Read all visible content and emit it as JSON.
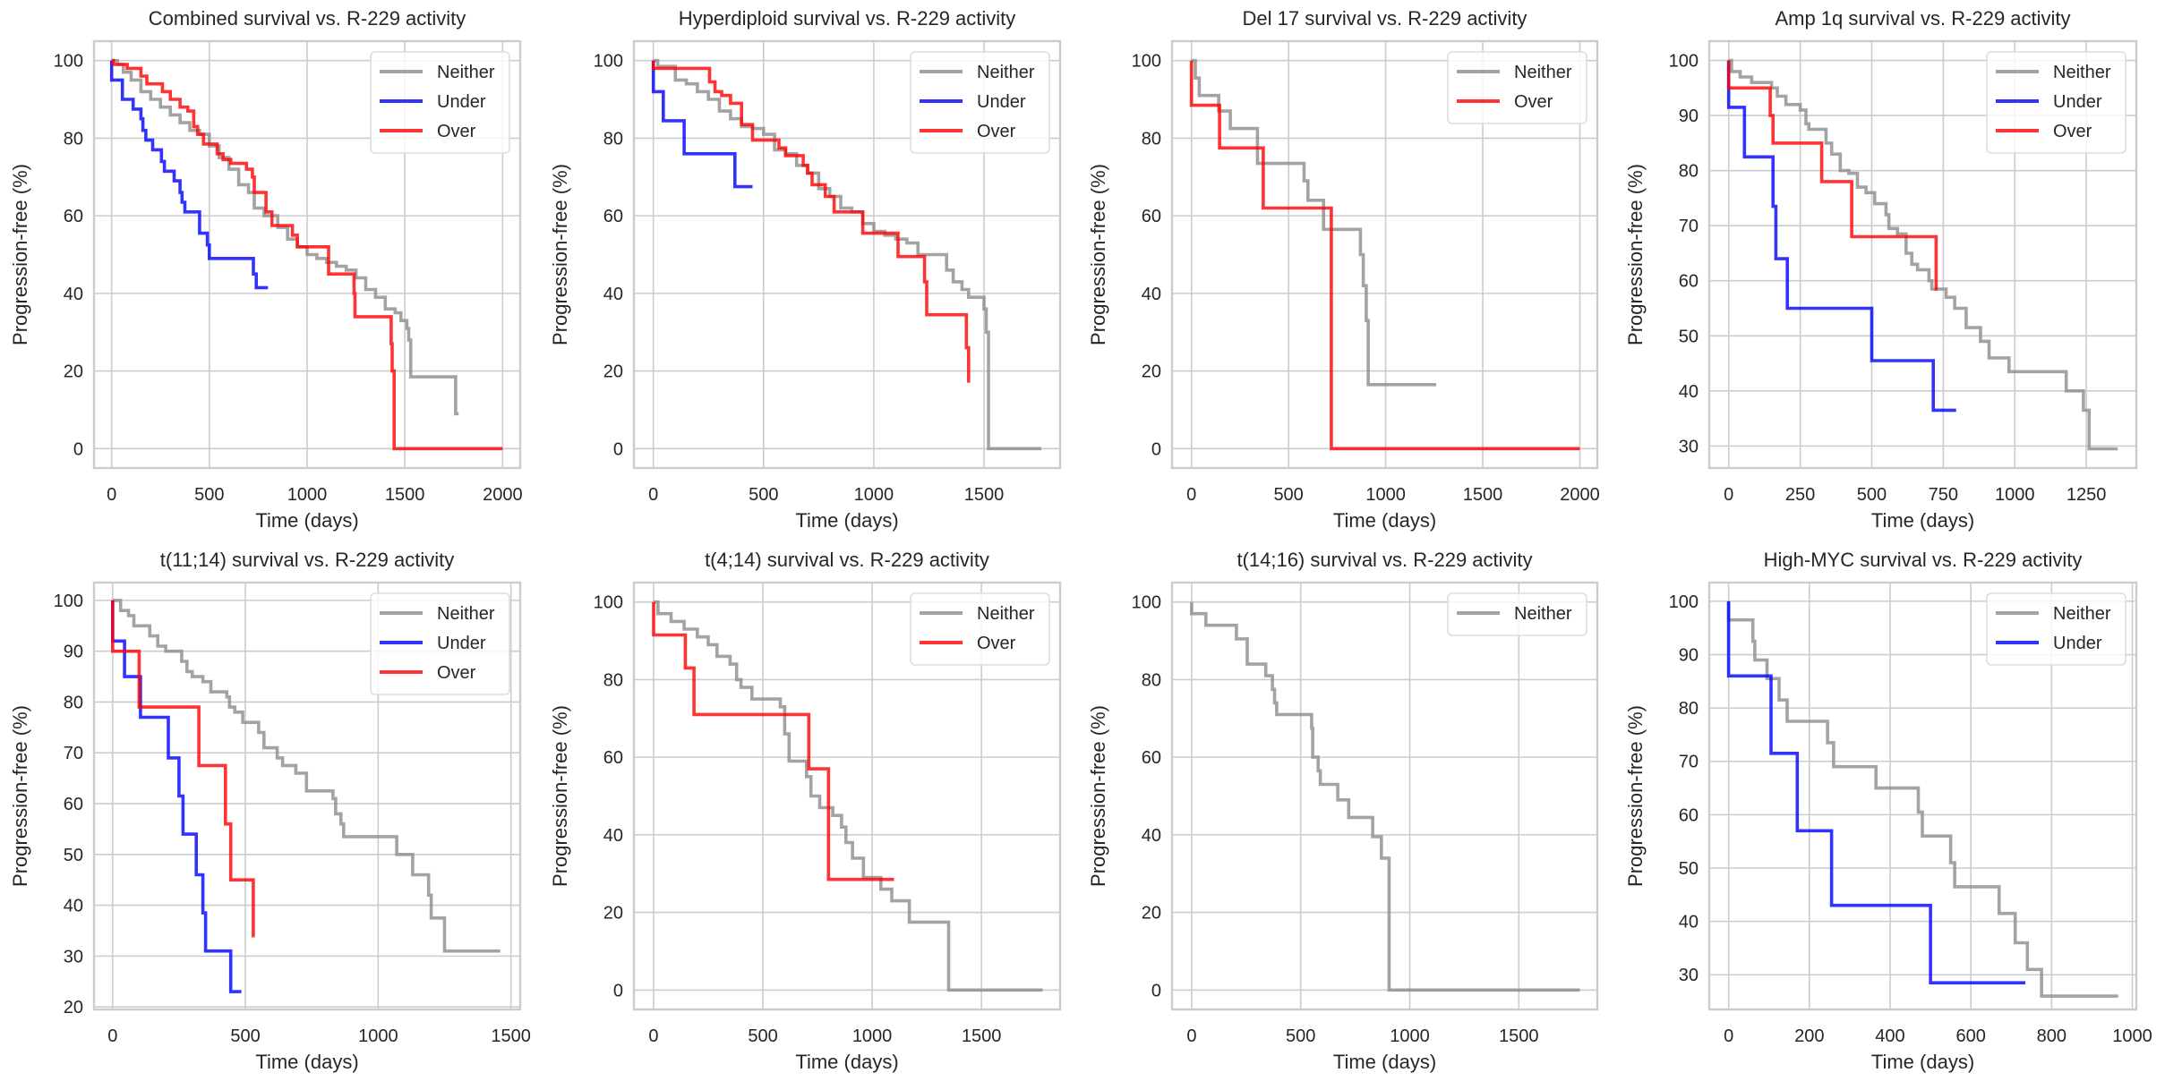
{
  "figure": {
    "series_colors": {
      "Neither": "#8c8c8c",
      "Under": "#0000ff",
      "Over": "#ff0000"
    }
  },
  "chart_data": [
    {
      "type": "line",
      "subtype": "kaplan-meier step",
      "title": "Combined survival vs. R-229 activity",
      "xlabel": "Time (days)",
      "ylabel": "Progression-free (%)",
      "xlim": [
        -90,
        2090
      ],
      "ylim": [
        -5,
        105
      ],
      "xticks": [
        0,
        500,
        1000,
        1500,
        2000
      ],
      "yticks": [
        0,
        20,
        40,
        60,
        80,
        100
      ],
      "grid": true,
      "legend": "top-right",
      "series": [
        {
          "name": "Neither",
          "x": [
            0,
            30,
            60,
            100,
            150,
            200,
            250,
            300,
            350,
            400,
            450,
            500,
            550,
            600,
            650,
            700,
            730,
            780,
            850,
            900,
            950,
            1000,
            1050,
            1100,
            1150,
            1200,
            1250,
            1300,
            1350,
            1400,
            1450,
            1480,
            1510,
            1520,
            1530,
            1760,
            1775
          ],
          "y": [
            100,
            99,
            97,
            95,
            92,
            90,
            88,
            86,
            84,
            82,
            81,
            78,
            75,
            72,
            68,
            66,
            62,
            60,
            57,
            54,
            52,
            50,
            49,
            48,
            47,
            46,
            44,
            41,
            39,
            36,
            35,
            33,
            31,
            28,
            18.5,
            9,
            9
          ]
        },
        {
          "name": "Under",
          "x": [
            0,
            55,
            110,
            150,
            160,
            175,
            210,
            255,
            270,
            320,
            350,
            360,
            375,
            450,
            490,
            500,
            725,
            740,
            800
          ],
          "y": [
            95,
            90,
            87.5,
            85,
            82,
            79.5,
            77,
            74,
            71.5,
            69,
            66,
            63.5,
            61,
            55.5,
            52.5,
            49,
            45,
            41.5,
            41.5
          ]
        },
        {
          "name": "Over",
          "x": [
            0,
            10,
            80,
            150,
            180,
            260,
            300,
            350,
            390,
            420,
            440,
            470,
            540,
            570,
            610,
            690,
            720,
            730,
            790,
            820,
            925,
            950,
            1110,
            1240,
            1245,
            1430,
            1435,
            1445,
            2000
          ],
          "y": [
            100,
            99,
            98,
            96,
            94,
            92,
            90,
            88,
            87,
            83,
            81,
            78.5,
            76,
            74.5,
            73.5,
            72,
            70,
            66,
            61,
            57.5,
            55,
            52,
            45,
            40,
            34,
            27,
            20,
            0,
            0
          ]
        }
      ]
    },
    {
      "type": "line",
      "subtype": "kaplan-meier step",
      "title": "Hyperdiploid survival vs. R-229 activity",
      "xlabel": "Time (days)",
      "ylabel": "Progression-free (%)",
      "xlim": [
        -88,
        1845
      ],
      "ylim": [
        -5,
        105
      ],
      "xticks": [
        0,
        500,
        1000,
        1500
      ],
      "yticks": [
        0,
        20,
        40,
        60,
        80,
        100
      ],
      "grid": true,
      "legend": "top-right",
      "series": [
        {
          "name": "Neither",
          "x": [
            0,
            20,
            100,
            150,
            200,
            250,
            300,
            350,
            400,
            450,
            500,
            550,
            600,
            650,
            700,
            750,
            800,
            850,
            900,
            950,
            1000,
            1050,
            1100,
            1150,
            1200,
            1250,
            1300,
            1330,
            1360,
            1400,
            1430,
            1500,
            1510,
            1520,
            1760
          ],
          "y": [
            100,
            98.5,
            95,
            94,
            92,
            90,
            87,
            85,
            83,
            82.5,
            81,
            77,
            76,
            73,
            71,
            67,
            65,
            62,
            61,
            58,
            56,
            55,
            54,
            53,
            50,
            50,
            50,
            46,
            43,
            41,
            39,
            36,
            30,
            0,
            0
          ]
        },
        {
          "name": "Under",
          "x": [
            0,
            45,
            140,
            370,
            450
          ],
          "y": [
            92,
            84.5,
            76,
            67.5,
            67.5
          ]
        },
        {
          "name": "Over",
          "x": [
            0,
            255,
            280,
            310,
            350,
            400,
            450,
            570,
            600,
            680,
            700,
            720,
            780,
            820,
            950,
            1110,
            1230,
            1240,
            1420,
            1430
          ],
          "y": [
            98,
            94.5,
            92,
            91,
            89,
            83.5,
            79.5,
            77.5,
            75.5,
            73,
            71,
            68,
            65,
            61,
            55.5,
            49.5,
            43,
            34.5,
            26,
            17
          ]
        }
      ]
    },
    {
      "type": "line",
      "subtype": "kaplan-meier step",
      "title": "Del 17 survival vs. R-229 activity",
      "xlabel": "Time (days)",
      "ylabel": "Progression-free (%)",
      "xlim": [
        -100,
        2090
      ],
      "ylim": [
        -5,
        105
      ],
      "xticks": [
        0,
        500,
        1000,
        1500,
        2000
      ],
      "yticks": [
        0,
        20,
        40,
        60,
        80,
        100
      ],
      "grid": true,
      "legend": "top-right",
      "series": [
        {
          "name": "Neither",
          "x": [
            0,
            20,
            40,
            140,
            200,
            340,
            580,
            600,
            680,
            870,
            885,
            900,
            910,
            920,
            1260
          ],
          "y": [
            100,
            95.5,
            91,
            87,
            82.5,
            73.5,
            69,
            64,
            56.5,
            50,
            42,
            33,
            16.5,
            16.5,
            16.5
          ]
        },
        {
          "name": "Over",
          "x": [
            0,
            145,
            370,
            720,
            2000
          ],
          "y": [
            88.5,
            77.5,
            62,
            0,
            0
          ]
        }
      ]
    },
    {
      "type": "line",
      "subtype": "kaplan-meier step",
      "title": "Amp 1q survival vs. R-229 activity",
      "xlabel": "Time (days)",
      "ylabel": "Progression-free (%)",
      "xlim": [
        -68,
        1425
      ],
      "ylim": [
        26,
        103.5
      ],
      "xticks": [
        0,
        250,
        500,
        750,
        1000,
        1250
      ],
      "yticks": [
        30,
        40,
        50,
        60,
        70,
        80,
        90,
        100
      ],
      "grid": true,
      "legend": "top-right",
      "series": [
        {
          "name": "Neither",
          "x": [
            0,
            10,
            40,
            80,
            150,
            170,
            200,
            250,
            270,
            280,
            340,
            360,
            390,
            420,
            450,
            480,
            510,
            550,
            560,
            590,
            620,
            640,
            660,
            700,
            710,
            760,
            790,
            830,
            880,
            910,
            980,
            1180,
            1240,
            1260,
            1360
          ],
          "y": [
            100,
            98,
            97,
            96,
            95,
            93.5,
            92,
            91,
            88.5,
            87.5,
            85,
            83,
            80,
            79.5,
            77,
            76,
            74,
            72,
            69.5,
            68.5,
            65,
            63,
            62,
            60,
            58.5,
            57,
            55,
            51.5,
            49,
            46,
            43.5,
            40,
            36.5,
            29.5,
            29.5
          ]
        },
        {
          "name": "Under",
          "x": [
            0,
            55,
            155,
            165,
            205,
            500,
            715,
            795
          ],
          "y": [
            91.5,
            82.5,
            73.5,
            64,
            55,
            45.5,
            36.5,
            36.5
          ]
        },
        {
          "name": "Over",
          "x": [
            0,
            145,
            155,
            325,
            430,
            725,
            730
          ],
          "y": [
            95,
            90,
            85,
            78,
            68,
            58.5,
            58.5
          ]
        }
      ]
    },
    {
      "type": "line",
      "subtype": "kaplan-meier step",
      "title": "t(11;14) survival vs. R-229 activity",
      "xlabel": "Time (days)",
      "ylabel": "Progression-free (%)",
      "xlim": [
        -70,
        1535
      ],
      "ylim": [
        19.5,
        103.5
      ],
      "xticks": [
        0,
        500,
        1000,
        1500
      ],
      "yticks": [
        20,
        30,
        40,
        50,
        60,
        70,
        80,
        90,
        100
      ],
      "grid": true,
      "legend": "top-right",
      "series": [
        {
          "name": "Neither",
          "x": [
            0,
            30,
            60,
            80,
            120,
            140,
            170,
            200,
            260,
            280,
            300,
            340,
            370,
            430,
            440,
            460,
            490,
            520,
            550,
            570,
            620,
            640,
            690,
            730,
            830,
            840,
            860,
            870,
            1070,
            1130,
            1190,
            1200,
            1250,
            1460
          ],
          "y": [
            100,
            98,
            97,
            95,
            95,
            93,
            91,
            90,
            88,
            86,
            85,
            84,
            82,
            81,
            79,
            78,
            76,
            76,
            74,
            71,
            69,
            67.5,
            66,
            62.5,
            61,
            58,
            56,
            53.5,
            50,
            46,
            42,
            37.5,
            31,
            31
          ]
        },
        {
          "name": "Under",
          "x": [
            0,
            45,
            105,
            210,
            250,
            265,
            315,
            340,
            350,
            445,
            485
          ],
          "y": [
            92,
            85,
            77,
            69,
            61.5,
            54,
            46,
            38.5,
            31,
            23,
            23
          ]
        },
        {
          "name": "Over",
          "x": [
            0,
            100,
            325,
            425,
            445,
            530,
            535
          ],
          "y": [
            90,
            79,
            67.5,
            56,
            45,
            34,
            34
          ]
        }
      ]
    },
    {
      "type": "line",
      "subtype": "kaplan-meier step",
      "title": "t(4;14) survival vs. R-229 activity",
      "xlabel": "Time (days)",
      "ylabel": "Progression-free (%)",
      "xlim": [
        -90,
        1860
      ],
      "ylim": [
        -5,
        105
      ],
      "xticks": [
        0,
        500,
        1000,
        1500
      ],
      "yticks": [
        0,
        20,
        40,
        60,
        80,
        100
      ],
      "grid": true,
      "legend": "top-right",
      "series": [
        {
          "name": "Neither",
          "x": [
            0,
            20,
            80,
            140,
            200,
            250,
            290,
            350,
            380,
            400,
            450,
            580,
            600,
            620,
            700,
            720,
            760,
            820,
            860,
            880,
            910,
            960,
            1040,
            1090,
            1170,
            1350,
            1780
          ],
          "y": [
            100,
            97,
            95,
            93,
            91,
            89,
            86,
            84,
            80,
            78,
            75,
            73,
            66,
            59,
            55,
            50,
            47,
            45,
            42,
            38,
            34,
            29,
            26,
            23,
            17.5,
            0,
            0
          ]
        },
        {
          "name": "Over",
          "x": [
            0,
            145,
            185,
            710,
            800,
            1100
          ],
          "y": [
            91.5,
            83,
            71,
            57,
            28.5,
            28.5
          ]
        }
      ]
    },
    {
      "type": "line",
      "subtype": "kaplan-meier step",
      "title": "t(14;16) survival vs. R-229 activity",
      "xlabel": "Time (days)",
      "ylabel": "Progression-free (%)",
      "xlim": [
        -90,
        1860
      ],
      "ylim": [
        -5,
        105
      ],
      "xticks": [
        0,
        500,
        1000,
        1500
      ],
      "yticks": [
        0,
        20,
        40,
        60,
        80,
        100
      ],
      "grid": true,
      "legend": "top-right",
      "series": [
        {
          "name": "Neither",
          "x": [
            0,
            65,
            205,
            255,
            340,
            370,
            380,
            390,
            550,
            555,
            580,
            590,
            670,
            720,
            830,
            870,
            905,
            1780
          ],
          "y": [
            97,
            94,
            90.5,
            84,
            81,
            77.5,
            74,
            71,
            67.5,
            60,
            56.5,
            53,
            49,
            44.5,
            39.5,
            34,
            0,
            0
          ]
        }
      ]
    },
    {
      "type": "line",
      "subtype": "kaplan-meier step",
      "title": "High-MYC survival vs. R-229 activity",
      "xlabel": "Time (days)",
      "ylabel": "Progression-free (%)",
      "xlim": [
        -48,
        1010
      ],
      "ylim": [
        23.5,
        103.5
      ],
      "xticks": [
        0,
        200,
        400,
        600,
        800,
        1000
      ],
      "yticks": [
        30,
        40,
        50,
        60,
        70,
        80,
        90,
        100
      ],
      "grid": true,
      "legend": "top-right",
      "series": [
        {
          "name": "Neither",
          "x": [
            0,
            60,
            65,
            95,
            125,
            145,
            245,
            260,
            365,
            470,
            480,
            550,
            560,
            670,
            710,
            740,
            775,
            965
          ],
          "y": [
            96.5,
            92.5,
            89,
            85.5,
            81.5,
            77.5,
            73.5,
            69,
            65,
            60.5,
            56,
            51,
            46.5,
            41.5,
            36,
            31,
            26,
            26
          ]
        },
        {
          "name": "Under",
          "x": [
            0,
            105,
            170,
            255,
            500,
            735
          ],
          "y": [
            86,
            71.5,
            57,
            43,
            28.5,
            28.5
          ]
        }
      ]
    }
  ]
}
